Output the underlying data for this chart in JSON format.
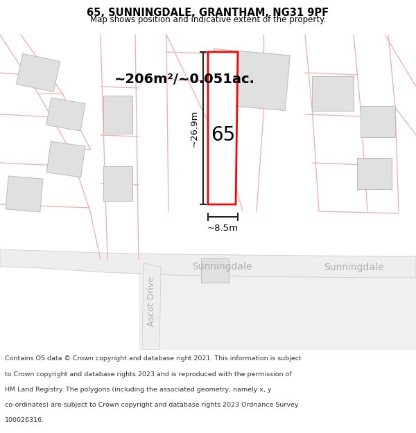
{
  "title_line1": "65, SUNNINGDALE, GRANTHAM, NG31 9PF",
  "title_line2": "Map shows position and indicative extent of the property.",
  "footer_lines": [
    "Contains OS data © Crown copyright and database right 2021. This information is subject",
    "to Crown copyright and database rights 2023 and is reproduced with the permission of",
    "HM Land Registry. The polygons (including the associated geometry, namely x, y",
    "co-ordinates) are subject to Crown copyright and database rights 2023 Ordnance Survey",
    "100026316."
  ],
  "area_label": "~206m²/~0.051ac.",
  "width_label": "~8.5m",
  "height_label": "~26.9m",
  "number_label": "65",
  "road_label1": "Sunningdale",
  "road_label2": "Sunningdale",
  "road_label3": "Ascot Drive",
  "bg_color": "#ffffff",
  "plot_color": "#ff0000",
  "building_fill": "#e0e0e0",
  "boundary_color": "#f5aaaa",
  "road_text_color": "#b0b0b0",
  "measure_color": "#333333"
}
